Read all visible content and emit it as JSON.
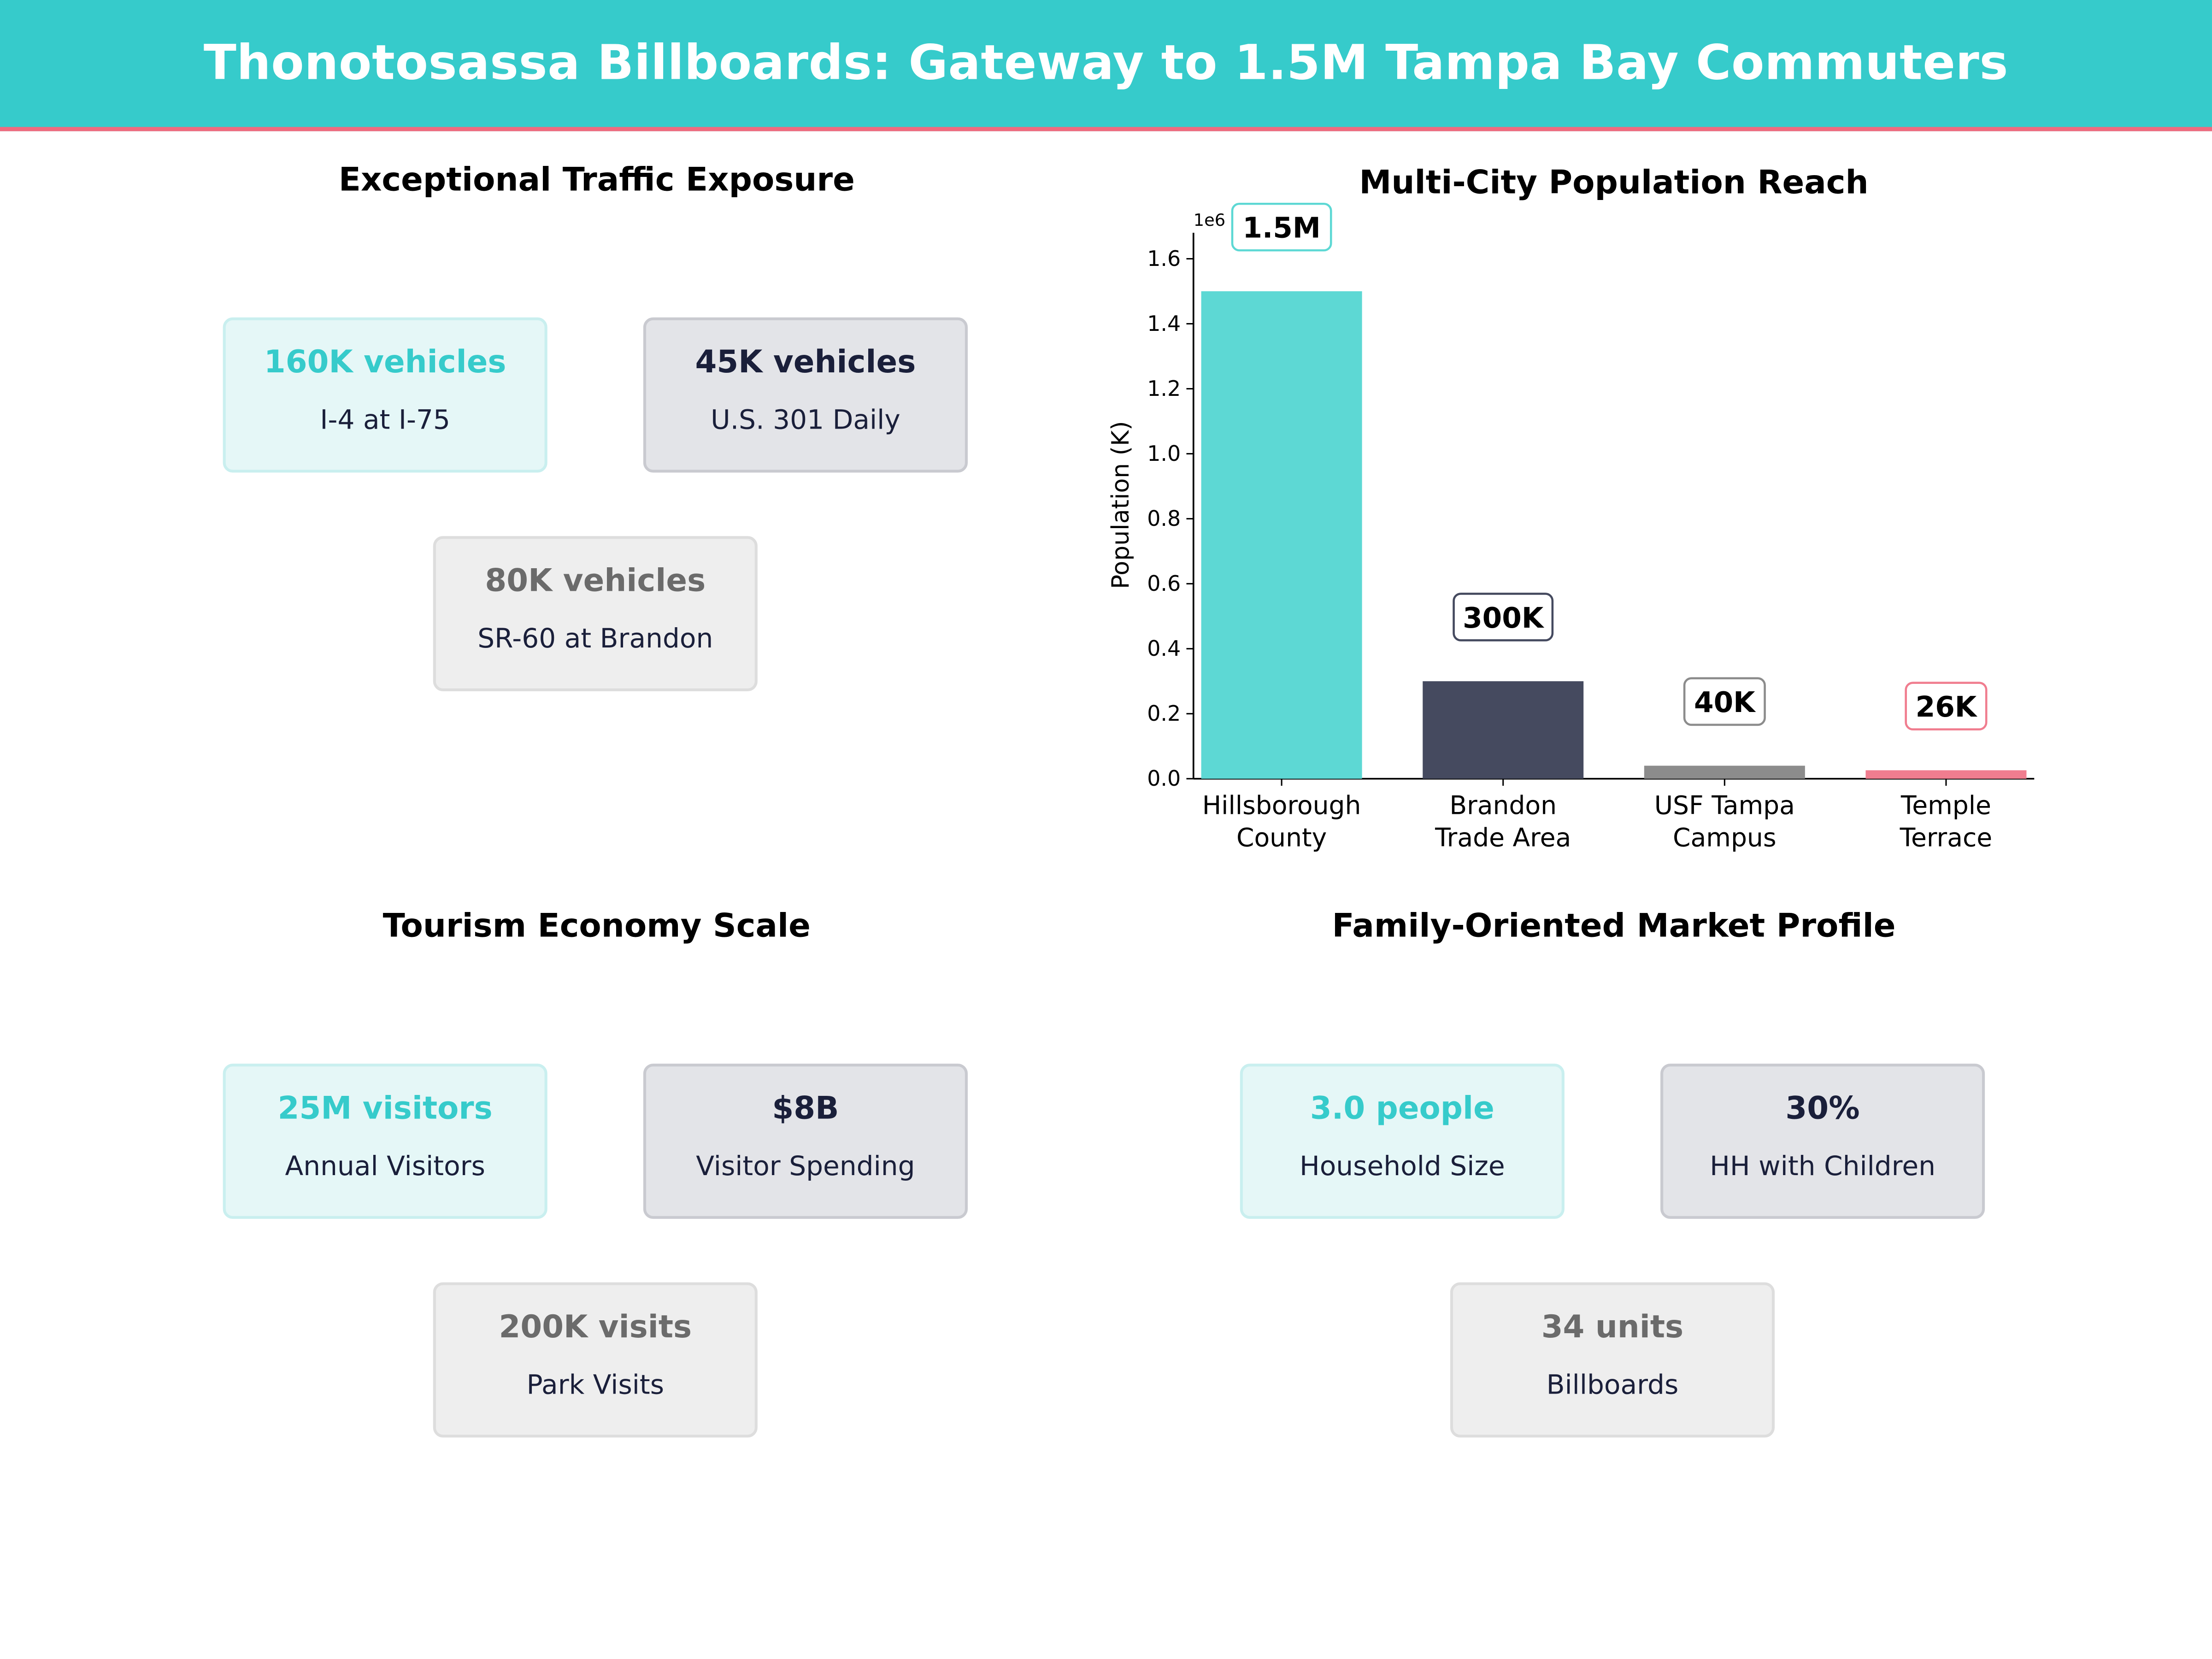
{
  "title": "Thonotosassa Billboards: Gateway to 1.5M Tampa Bay Commuters",
  "colors": {
    "header": "#36CBCB",
    "accent_line": "#F06A7E"
  },
  "panels": {
    "traffic": {
      "title": "Exceptional Traffic Exposure",
      "cards": [
        {
          "value": "160K vehicles",
          "label": "I-4 at I-75"
        },
        {
          "value": "45K vehicles",
          "label": "U.S. 301 Daily"
        },
        {
          "value": "80K vehicles",
          "label": "SR-60 at Brandon"
        }
      ]
    },
    "tourism": {
      "title": "Tourism Economy Scale",
      "cards": [
        {
          "value": "25M visitors",
          "label": "Annual Visitors"
        },
        {
          "value": "$8B",
          "label": "Visitor Spending"
        },
        {
          "value": "200K visits",
          "label": "Park Visits"
        }
      ]
    },
    "family": {
      "title": "Family-Oriented Market Profile",
      "cards": [
        {
          "value": "3.0 people",
          "label": "Household Size"
        },
        {
          "value": "30%",
          "label": "HH with Children"
        },
        {
          "value": "34 units",
          "label": "Billboards"
        }
      ]
    }
  },
  "chart_data": {
    "type": "bar",
    "title": "Multi-City Population Reach",
    "ylabel": "Population (K)",
    "xlabel": "",
    "offset_label": "1e6",
    "categories": [
      "Hillsborough\nCounty",
      "Brandon\nTrade Area",
      "USF Tampa\nCampus",
      "Temple\nTerrace"
    ],
    "values": [
      1500000,
      300000,
      40000,
      26000
    ],
    "data_labels": [
      "1.5M",
      "300K",
      "40K",
      "26K"
    ],
    "colors": [
      "#5DD8D4",
      "#454A5F",
      "#8C8C8C",
      "#F07D8F"
    ],
    "ylim": [
      0,
      1680000
    ],
    "yticks": [
      0,
      0.2,
      0.4,
      0.6,
      0.8,
      1.0,
      1.2,
      1.4,
      1.6
    ],
    "ytick_labels": [
      "0.0",
      "0.2",
      "0.4",
      "0.6",
      "0.8",
      "1.0",
      "1.2",
      "1.4",
      "1.6"
    ],
    "grid": false
  }
}
